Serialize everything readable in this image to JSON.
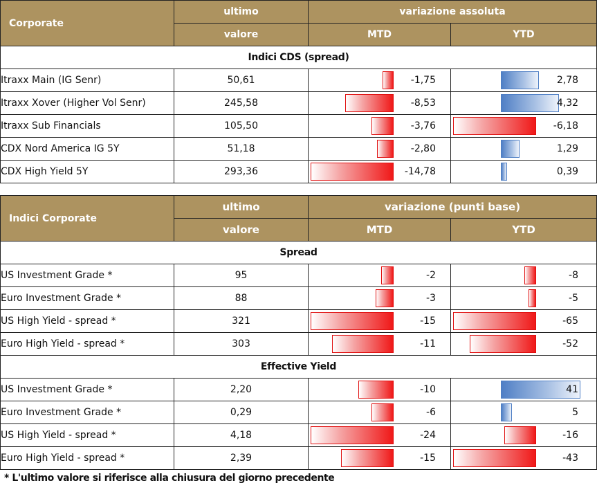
{
  "table1": {
    "header": {
      "label": "Corporate",
      "col_last_line1": "ultimo",
      "col_last_line2": "valore",
      "group": "variazione assoluta",
      "col_mtd": "MTD",
      "col_ytd": "YTD"
    },
    "section": "Indici CDS (spread)",
    "rows": [
      {
        "name": "Itraxx Main (IG Senr)",
        "last": "50,61",
        "mtd": "-1,75",
        "ytd": "2,78",
        "mtd_value": -1.75,
        "ytd_value": 2.78
      },
      {
        "name": "Itraxx Xover (Higher Vol Senr)",
        "last": "245,58",
        "mtd": "-8,53",
        "ytd": "4,32",
        "mtd_value": -8.53,
        "ytd_value": 4.32
      },
      {
        "name": "Itraxx Sub Financials",
        "last": "105,50",
        "mtd": "-3,76",
        "ytd": "-6,18",
        "mtd_value": -3.76,
        "ytd_value": -6.18
      },
      {
        "name": "CDX Nord America IG 5Y",
        "last": "51,18",
        "mtd": "-2,80",
        "ytd": "1,29",
        "mtd_value": -2.8,
        "ytd_value": 1.29
      },
      {
        "name": "CDX High Yield 5Y",
        "last": "293,36",
        "mtd": "-14,78",
        "ytd": "0,39",
        "mtd_value": -14.78,
        "ytd_value": 0.39
      }
    ]
  },
  "table2": {
    "header": {
      "label": "Indici Corporate",
      "col_last_line1": "ultimo",
      "col_last_line2": "valore",
      "group": "variazione (punti base)",
      "col_mtd": "MTD",
      "col_ytd": "YTD"
    },
    "sections": [
      {
        "title": "Spread",
        "rows": [
          {
            "name": "US Investment Grade *",
            "last": "95",
            "mtd": "-2",
            "ytd": "-8",
            "mtd_value": -2,
            "ytd_value": -8
          },
          {
            "name": "Euro Investment Grade *",
            "last": "88",
            "mtd": "-3",
            "ytd": "-5",
            "mtd_value": -3,
            "ytd_value": -5
          },
          {
            "name": "US High Yield  - spread *",
            "last": "321",
            "mtd": "-15",
            "ytd": "-65",
            "mtd_value": -15,
            "ytd_value": -65
          },
          {
            "name": "Euro High Yield  - spread *",
            "last": "303",
            "mtd": "-11",
            "ytd": "-52",
            "mtd_value": -11,
            "ytd_value": -52
          }
        ]
      },
      {
        "title": "Effective Yield",
        "rows": [
          {
            "name": "US Investment Grade *",
            "last": "2,20",
            "mtd": "-10",
            "ytd": "41",
            "mtd_value": -10,
            "ytd_value": 41
          },
          {
            "name": "Euro Investment Grade *",
            "last": "0,29",
            "mtd": "-6",
            "ytd": "5",
            "mtd_value": -6,
            "ytd_value": 5
          },
          {
            "name": "US High Yield  - spread *",
            "last": "4,18",
            "mtd": "-24",
            "ytd": "-16",
            "mtd_value": -24,
            "ytd_value": -16
          },
          {
            "name": "Euro High Yield  - spread *",
            "last": "2,39",
            "mtd": "-15",
            "ytd": "-43",
            "mtd_value": -15,
            "ytd_value": -43
          }
        ]
      }
    ]
  },
  "footnote": "* L'ultimo valore si riferisce alla chiusura del giorno precedente"
}
